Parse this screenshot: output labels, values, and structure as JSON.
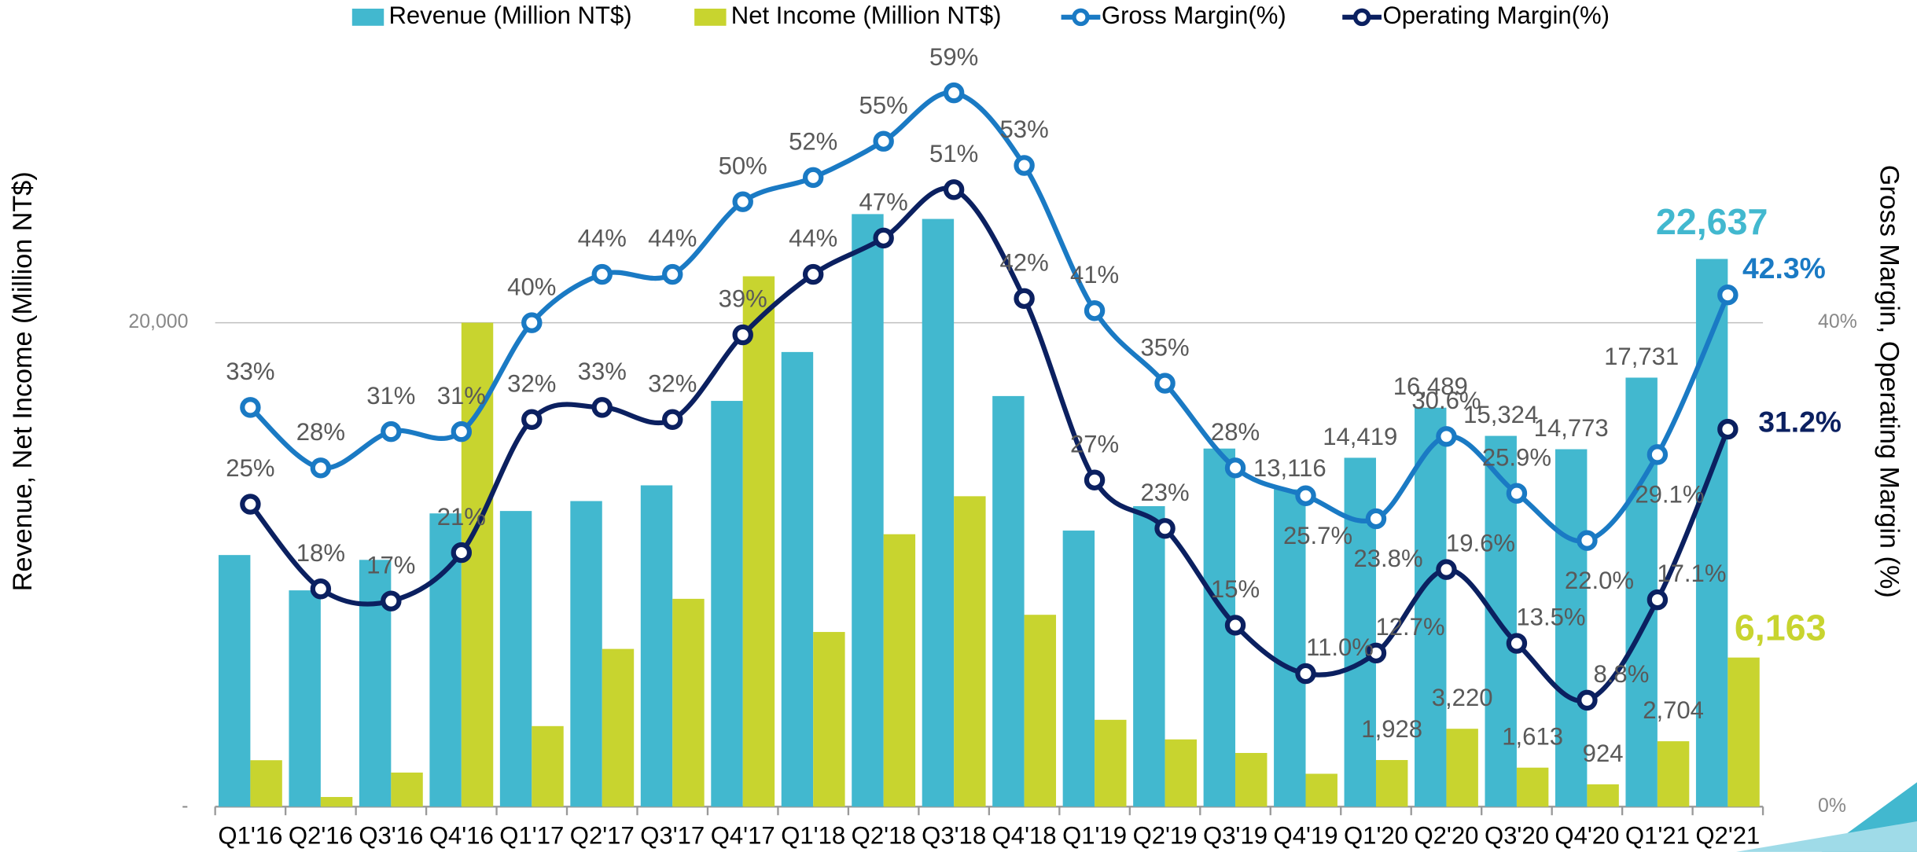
{
  "chart_data": {
    "type": "bar",
    "categories": [
      "Q1'16",
      "Q2'16",
      "Q3'16",
      "Q4'16",
      "Q1'17",
      "Q2'17",
      "Q3'17",
      "Q4'17",
      "Q1'18",
      "Q2'18",
      "Q3'18",
      "Q4'18",
      "Q1'19",
      "Q2'19",
      "Q3'19",
      "Q4'19",
      "Q1'20",
      "Q2'20",
      "Q3'20",
      "Q4'20",
      "Q1'21",
      "Q2'21"
    ],
    "y_label": "Revenue, Net Income (Million NT$)",
    "y2_label": "Gross Margin, Operating Margin (%)",
    "ylim": [
      0,
      33000
    ],
    "yticks": [
      {
        "value": 0,
        "label": "-"
      },
      {
        "value": 20000,
        "label": "20,000"
      }
    ],
    "y2lim": [
      0,
      66
    ],
    "y2ticks": [
      {
        "value": 0,
        "label": "0%"
      },
      {
        "value": 40,
        "label": "40%"
      }
    ],
    "grid": true,
    "legend": "top",
    "series": [
      {
        "name": "Revenue (Million NT$)",
        "type": "bar",
        "color": "#42b8cf",
        "values": [
          10400,
          8940,
          10200,
          12120,
          12220,
          12630,
          13280,
          16770,
          18790,
          24490,
          24290,
          16970,
          11410,
          12420,
          14800,
          13116,
          14419,
          16489,
          15324,
          14773,
          17731,
          22637
        ],
        "value_labels": [
          null,
          null,
          null,
          null,
          null,
          null,
          null,
          null,
          null,
          null,
          null,
          null,
          null,
          null,
          null,
          "13,116",
          "14,419",
          "16,489",
          "15,324",
          "14,773",
          "17,731",
          "22,637"
        ]
      },
      {
        "name": "Net Income (Million NT$)",
        "type": "bar",
        "color": "#c8d42f",
        "values": [
          1920,
          400,
          1410,
          20000,
          3330,
          6520,
          8590,
          21920,
          7220,
          11260,
          12830,
          7930,
          3590,
          2780,
          2220,
          1360,
          1928,
          3220,
          1613,
          924,
          2704,
          6163
        ],
        "value_labels": [
          null,
          null,
          null,
          null,
          null,
          null,
          null,
          null,
          null,
          null,
          null,
          null,
          null,
          null,
          null,
          null,
          "1,928",
          "3,220",
          "1,613",
          "924",
          "2,704",
          "6,163"
        ]
      },
      {
        "name": "Gross Margin(%)",
        "type": "line",
        "axis": "y2",
        "color": "#1a7ac4",
        "values": [
          33,
          28,
          31,
          31,
          40,
          44,
          44,
          50,
          52,
          55,
          59,
          53,
          41,
          35,
          28,
          25.7,
          23.8,
          30.6,
          25.9,
          22.0,
          29.1,
          42.3
        ],
        "value_labels": [
          "33%",
          "28%",
          "31%",
          "31%",
          "40%",
          "44%",
          "44%",
          "50%",
          "52%",
          "55%",
          "59%",
          "53%",
          "41%",
          "35%",
          "28%",
          "25.7%",
          "23.8%",
          "30.6%",
          "25.9%",
          "22.0%",
          "29.1%",
          "42.3%"
        ]
      },
      {
        "name": "Operating Margin(%)",
        "type": "line",
        "axis": "y2",
        "color": "#0b2060",
        "values": [
          25,
          18,
          17,
          21,
          32,
          33,
          32,
          39,
          44,
          47,
          51,
          42,
          27,
          23,
          15,
          11.0,
          12.7,
          19.6,
          13.5,
          8.8,
          17.1,
          31.2
        ],
        "value_labels": [
          "25%",
          "18%",
          "17%",
          "21%",
          "32%",
          "33%",
          "32%",
          "39%",
          "44%",
          "47%",
          "51%",
          "42%",
          "27%",
          "23%",
          "15%",
          "11.0%",
          "12.7%",
          "19.6%",
          "13.5%",
          "8.8%",
          "17.1%",
          "31.2%"
        ]
      }
    ]
  }
}
